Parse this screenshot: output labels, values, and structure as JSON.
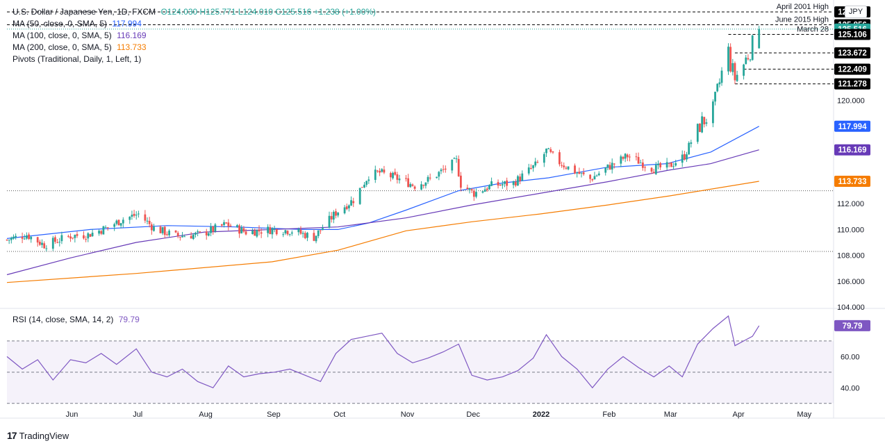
{
  "header": {
    "symbol": "U.S. Dollar / Japanese Yen, 1D, FXCM",
    "ohlc": "O124.030 H125.771 L124.010 C125.516 +1.238 (+1.00%)",
    "ma50": "MA (50, close, 0, SMA, 5)",
    "ma50_value": "117.994",
    "ma100": "MA (100, close, 0, SMA, 5)",
    "ma100_value": "116.169",
    "ma200": "MA (200, close, 0, SMA, 5)",
    "ma200_value": "113.733",
    "pivots": "Pivots (Traditional, Daily, 1, Left, 1)",
    "rsi": "RSI (14, close, SMA, 14, 2)",
    "rsi_value": "79.79"
  },
  "currency": "JPY",
  "brand": "TradingView",
  "colors": {
    "up": "#26a69a",
    "down": "#ef5350",
    "ma50": "#2962ff",
    "ma100": "#673ab7",
    "ma200": "#f57c00",
    "rsi": "#7e57c2",
    "price_badge": "#26a69a",
    "level_badge": "#000000"
  },
  "chart_data": [
    {
      "type": "candlestick",
      "title": "U.S. Dollar / Japanese Yen, 1D, FXCM",
      "ylim": [
        104,
        127.5
      ],
      "yticks": [
        104,
        106,
        108,
        110,
        112,
        120
      ],
      "ytick_labels": [
        "104.000",
        "106.000",
        "108.000",
        "110.000",
        "112.000",
        "120.000"
      ],
      "xticks": [
        "Jun",
        "Jul",
        "Aug",
        "Sep",
        "Oct",
        "Nov",
        "Dec",
        "2022",
        "Feb",
        "Mar",
        "Apr",
        "May"
      ],
      "last": {
        "open": 124.03,
        "high": 125.771,
        "low": 124.01,
        "close": 125.516,
        "change": 1.238,
        "change_pct": 1.0
      },
      "close_anchors": [
        {
          "date": "2021-05-03",
          "close": 109.2
        },
        {
          "date": "2021-05-12",
          "close": 109.6
        },
        {
          "date": "2021-05-20",
          "close": 108.8
        },
        {
          "date": "2021-06-01",
          "close": 109.5
        },
        {
          "date": "2021-06-09",
          "close": 109.6
        },
        {
          "date": "2021-06-17",
          "close": 110.1
        },
        {
          "date": "2021-06-25",
          "close": 110.8
        },
        {
          "date": "2021-07-02",
          "close": 111.2
        },
        {
          "date": "2021-07-09",
          "close": 110.1
        },
        {
          "date": "2021-07-19",
          "close": 109.5
        },
        {
          "date": "2021-07-30",
          "close": 109.6
        },
        {
          "date": "2021-08-11",
          "close": 110.4
        },
        {
          "date": "2021-08-20",
          "close": 109.8
        },
        {
          "date": "2021-09-01",
          "close": 110.0
        },
        {
          "date": "2021-09-10",
          "close": 109.9
        },
        {
          "date": "2021-09-20",
          "close": 109.4
        },
        {
          "date": "2021-09-30",
          "close": 111.3
        },
        {
          "date": "2021-10-08",
          "close": 112.3
        },
        {
          "date": "2021-10-15",
          "close": 114.2
        },
        {
          "date": "2021-10-20",
          "close": 114.4
        },
        {
          "date": "2021-10-29",
          "close": 113.9
        },
        {
          "date": "2021-11-05",
          "close": 113.4
        },
        {
          "date": "2021-11-12",
          "close": 113.9
        },
        {
          "date": "2021-11-24",
          "close": 115.3
        },
        {
          "date": "2021-11-26",
          "close": 113.5
        },
        {
          "date": "2021-12-02",
          "close": 112.8
        },
        {
          "date": "2021-12-10",
          "close": 113.4
        },
        {
          "date": "2021-12-20",
          "close": 113.6
        },
        {
          "date": "2021-12-31",
          "close": 115.1
        },
        {
          "date": "2022-01-04",
          "close": 116.1
        },
        {
          "date": "2022-01-10",
          "close": 115.2
        },
        {
          "date": "2022-01-17",
          "close": 114.5
        },
        {
          "date": "2022-01-24",
          "close": 113.9
        },
        {
          "date": "2022-02-01",
          "close": 114.8
        },
        {
          "date": "2022-02-10",
          "close": 115.7
        },
        {
          "date": "2022-02-22",
          "close": 114.7
        },
        {
          "date": "2022-03-01",
          "close": 114.9
        },
        {
          "date": "2022-03-08",
          "close": 115.7
        },
        {
          "date": "2022-03-14",
          "close": 117.9
        },
        {
          "date": "2022-03-21",
          "close": 119.2
        },
        {
          "date": "2022-03-25",
          "close": 122.1
        },
        {
          "date": "2022-03-28",
          "close": 123.8
        },
        {
          "date": "2022-03-29",
          "close": 122.8
        },
        {
          "date": "2022-03-31",
          "close": 121.7
        },
        {
          "date": "2022-04-04",
          "close": 122.8
        },
        {
          "date": "2022-04-07",
          "close": 123.9
        },
        {
          "date": "2022-04-08",
          "close": 124.3
        },
        {
          "date": "2022-04-11",
          "close": 125.516
        }
      ],
      "moving_averages": [
        {
          "name": "MA (50, close, 0, SMA, 5)",
          "color": "#2962ff",
          "last": 117.994,
          "points": [
            [
              "2021-05-03",
              109.3
            ],
            [
              "2021-06-10",
              110.0
            ],
            [
              "2021-07-15",
              110.3
            ],
            [
              "2021-08-15",
              110.2
            ],
            [
              "2021-09-15",
              110.0
            ],
            [
              "2021-10-01",
              110.0
            ],
            [
              "2021-10-15",
              110.5
            ],
            [
              "2021-11-01",
              111.5
            ],
            [
              "2021-11-25",
              113.0
            ],
            [
              "2021-12-15",
              113.6
            ],
            [
              "2022-01-05",
              114.0
            ],
            [
              "2022-01-31",
              114.8
            ],
            [
              "2022-02-28",
              115.1
            ],
            [
              "2022-03-20",
              116.0
            ],
            [
              "2022-04-11",
              117.994
            ]
          ]
        },
        {
          "name": "MA (100, close, 0, SMA, 5)",
          "color": "#673ab7",
          "last": 116.169,
          "points": [
            [
              "2021-05-03",
              106.5
            ],
            [
              "2021-06-01",
              107.8
            ],
            [
              "2021-07-01",
              109.0
            ],
            [
              "2021-08-01",
              109.8
            ],
            [
              "2021-09-01",
              110.0
            ],
            [
              "2021-10-01",
              110.2
            ],
            [
              "2021-11-01",
              110.9
            ],
            [
              "2021-12-01",
              111.9
            ],
            [
              "2022-01-01",
              112.8
            ],
            [
              "2022-02-01",
              113.7
            ],
            [
              "2022-03-01",
              114.6
            ],
            [
              "2022-03-20",
              115.1
            ],
            [
              "2022-04-11",
              116.169
            ]
          ]
        },
        {
          "name": "MA (200, close, 0, SMA, 5)",
          "color": "#f57c00",
          "last": 113.733,
          "points": [
            [
              "2021-05-03",
              105.9
            ],
            [
              "2021-07-01",
              106.6
            ],
            [
              "2021-09-01",
              107.5
            ],
            [
              "2021-10-01",
              108.4
            ],
            [
              "2021-11-01",
              109.9
            ],
            [
              "2021-12-01",
              110.6
            ],
            [
              "2022-01-01",
              111.2
            ],
            [
              "2022-02-01",
              111.9
            ],
            [
              "2022-03-01",
              112.6
            ],
            [
              "2022-04-11",
              113.733
            ]
          ]
        }
      ],
      "levels": [
        {
          "label": "April 2001 High",
          "value": 126.85,
          "value_label": "126.850",
          "style": "dashed"
        },
        {
          "label": "June 2015 High",
          "value": 125.856,
          "value_label": "125.856",
          "style": "dashed"
        },
        {
          "label": "",
          "value": 125.516,
          "value_label": "125.516",
          "style": "dotted",
          "is_price": true
        },
        {
          "label": "March 28",
          "value": 125.106,
          "value_label": "125.106",
          "style": "dashed",
          "from": "2022-03-28"
        },
        {
          "label": "",
          "value": 123.672,
          "value_label": "123.672",
          "style": "dashed",
          "from": "2022-03-31"
        },
        {
          "label": "",
          "value": 122.409,
          "value_label": "122.409",
          "style": "dashed",
          "from": "2022-04-04"
        },
        {
          "label": "",
          "value": 121.278,
          "value_label": "121.278",
          "style": "dashed",
          "from": "2022-03-31"
        }
      ],
      "reference_lines": [
        113.0,
        108.3
      ]
    },
    {
      "type": "line",
      "title": "RSI (14, close, SMA, 14, 2)",
      "ylim": [
        25,
        90
      ],
      "yticks": [
        40,
        60
      ],
      "ytick_labels": [
        "40.00",
        "60.00"
      ],
      "band": [
        30,
        70
      ],
      "midline": 50,
      "last": 79.79,
      "points": [
        [
          "2021-05-03",
          60
        ],
        [
          "2021-05-10",
          52
        ],
        [
          "2021-05-17",
          58
        ],
        [
          "2021-05-24",
          45
        ],
        [
          "2021-06-01",
          58
        ],
        [
          "2021-06-08",
          56
        ],
        [
          "2021-06-15",
          62
        ],
        [
          "2021-06-22",
          55
        ],
        [
          "2021-07-01",
          65
        ],
        [
          "2021-07-08",
          50
        ],
        [
          "2021-07-15",
          47
        ],
        [
          "2021-07-22",
          52
        ],
        [
          "2021-07-29",
          44
        ],
        [
          "2021-08-05",
          40
        ],
        [
          "2021-08-12",
          54
        ],
        [
          "2021-08-19",
          47
        ],
        [
          "2021-08-26",
          49
        ],
        [
          "2021-09-02",
          50
        ],
        [
          "2021-09-09",
          52
        ],
        [
          "2021-09-16",
          48
        ],
        [
          "2021-09-23",
          44
        ],
        [
          "2021-09-30",
          62
        ],
        [
          "2021-10-07",
          71
        ],
        [
          "2021-10-14",
          73
        ],
        [
          "2021-10-21",
          75
        ],
        [
          "2021-10-28",
          62
        ],
        [
          "2021-11-04",
          56
        ],
        [
          "2021-11-11",
          59
        ],
        [
          "2021-11-18",
          63
        ],
        [
          "2021-11-25",
          68
        ],
        [
          "2021-12-01",
          48
        ],
        [
          "2021-12-08",
          45
        ],
        [
          "2021-12-15",
          47
        ],
        [
          "2021-12-22",
          51
        ],
        [
          "2021-12-29",
          59
        ],
        [
          "2022-01-04",
          74
        ],
        [
          "2022-01-11",
          60
        ],
        [
          "2022-01-18",
          52
        ],
        [
          "2022-01-25",
          40
        ],
        [
          "2022-02-01",
          52
        ],
        [
          "2022-02-08",
          60
        ],
        [
          "2022-02-15",
          53
        ],
        [
          "2022-02-22",
          47
        ],
        [
          "2022-03-01",
          54
        ],
        [
          "2022-03-07",
          47
        ],
        [
          "2022-03-14",
          68
        ],
        [
          "2022-03-21",
          78
        ],
        [
          "2022-03-28",
          86
        ],
        [
          "2022-03-31",
          67
        ],
        [
          "2022-04-04",
          70
        ],
        [
          "2022-04-08",
          73
        ],
        [
          "2022-04-11",
          79.79
        ]
      ]
    }
  ]
}
